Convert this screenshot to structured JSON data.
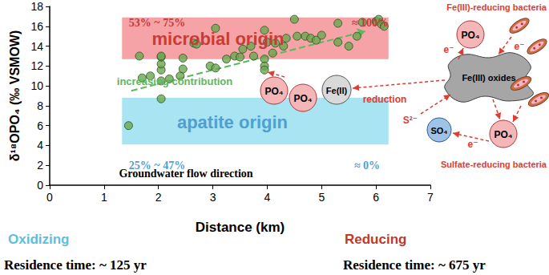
{
  "chart_data": {
    "type": "scatter",
    "xlabel": "Distance (km)",
    "ylabel": "δ¹⁸OPO₄ (‰ VSMOW)",
    "x": [
      1.45,
      1.65,
      1.7,
      1.85,
      2.05,
      2.05,
      2.05,
      2.05,
      2.05,
      2.05,
      2.2,
      2.4,
      2.45,
      2.45,
      2.65,
      2.7,
      2.95,
      3.05,
      3.05,
      3.25,
      3.4,
      3.5,
      3.55,
      3.7,
      3.75,
      3.95,
      3.95,
      3.95,
      3.95,
      4.0,
      4.1,
      4.15,
      4.3,
      4.35,
      4.5,
      4.55,
      4.7,
      4.8,
      4.9,
      5.0,
      5.3,
      5.3,
      5.5,
      5.65,
      5.75,
      6.0,
      6.05,
      6.1,
      6.15
    ],
    "values": [
      6.0,
      13.0,
      10.8,
      11.0,
      8.7,
      10.5,
      11.6,
      12.2,
      12.9,
      13.0,
      10.7,
      11.0,
      11.7,
      12.8,
      14.3,
      14.2,
      12.0,
      11.8,
      15.8,
      12.7,
      13.0,
      12.9,
      13.7,
      14.0,
      13.0,
      15.6,
      12.7,
      12.0,
      11.6,
      14.4,
      13.3,
      14.3,
      14.0,
      14.8,
      16.7,
      15.0,
      15.0,
      14.8,
      14.6,
      15.1,
      14.4,
      16.3,
      14.0,
      15.0,
      16.4,
      16.5,
      16.7,
      16.2,
      16.0
    ],
    "color": "#6aa84f",
    "marker": "circle",
    "xlim": [
      0,
      7
    ],
    "xticks": [
      0,
      1,
      2,
      3,
      4,
      5,
      6,
      7
    ],
    "ylim": [
      0,
      18
    ],
    "yticks": [
      0,
      2,
      4,
      6,
      8,
      10,
      12,
      14,
      16,
      18
    ],
    "grid": false,
    "bands": [
      {
        "label": "microbial origin",
        "x": [
          1.33,
          6.23
        ],
        "y": [
          12.7,
          16.9
        ],
        "color": "#f5a3a6",
        "text_color": "#c73b3b",
        "share_near": "53% ~ 75%",
        "share_far": "≈ 100%"
      },
      {
        "label": "apatite origin",
        "x": [
          1.33,
          6.23
        ],
        "y": [
          4.1,
          8.8
        ],
        "color": "#a9e4f2",
        "text_color": "#4f9fd1",
        "share_near": "25% ~ 47%",
        "share_far": "≈ 0%"
      }
    ],
    "trend": {
      "label": "increasing contribution",
      "from": [
        1.5,
        9.5
      ],
      "to": [
        5.8,
        15.5
      ],
      "color": "#5cb85c",
      "line_style": "dashed"
    },
    "flow_label": "Groundwater flow direction",
    "conditions": [
      {
        "label": "Oxidizing",
        "color": "#5bc0de",
        "residence": "Residence time: ~ 125 yr"
      },
      {
        "label": "Reducing",
        "color": "#c0392b",
        "residence": "Residence time: ~ 675 yr"
      }
    ],
    "diagram": {
      "fe_bacteria": "Fe(III)-reducing bacteria",
      "so4_bacteria": "Sulfate-reducing bacteria",
      "oxide": "Fe(III) oxides",
      "reduction": "reduction",
      "phosphate": "PO₄",
      "ferrous": "Fe(II)",
      "sulfate": "SO₄",
      "sulfide": "S²⁻",
      "electron": "e⁻"
    }
  }
}
